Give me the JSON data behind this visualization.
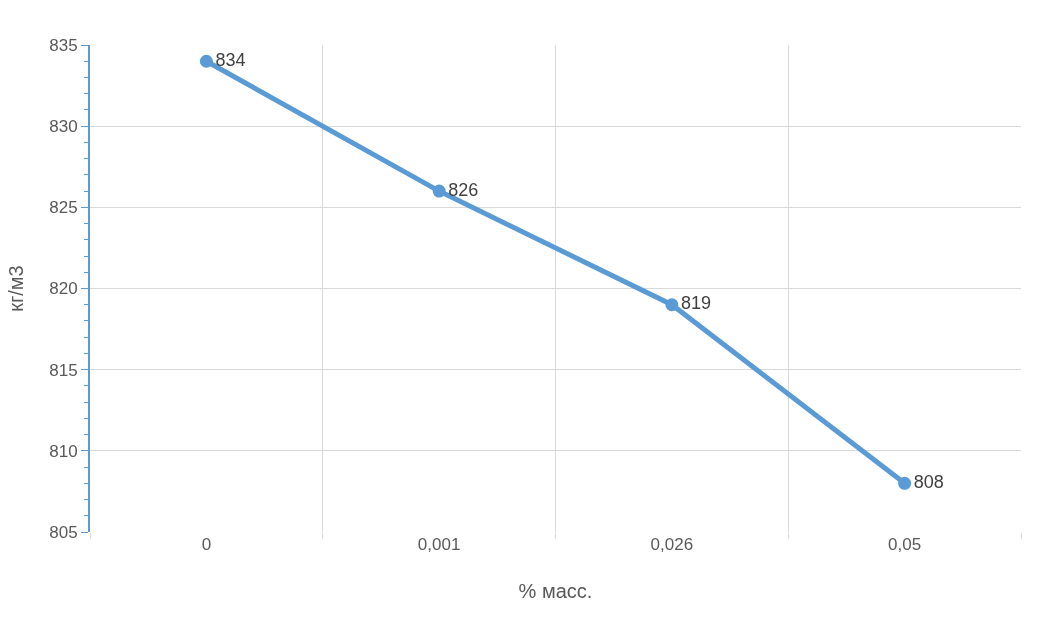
{
  "chart_data": {
    "type": "line",
    "xlabel": "% масс.",
    "ylabel": "кг/м3",
    "categories": [
      "0",
      "0,001",
      "0,026",
      "0,05"
    ],
    "series": [
      {
        "color": "#5b9bd5",
        "values": [
          834,
          826,
          819,
          808
        ]
      }
    ],
    "ylim": [
      805,
      835
    ],
    "yticks": [
      805,
      {
        "value": 806,
        "label": null
      },
      {
        "value": 807,
        "label": null
      },
      {
        "value": 808,
        "label": null
      },
      {
        "value": 809,
        "label": null
      },
      810,
      {
        "value": 811,
        "label": null
      },
      {
        "value": 812,
        "label": null
      },
      {
        "value": 813,
        "label": null
      },
      {
        "value": 814,
        "label": null
      },
      815,
      {
        "value": 816,
        "label": null
      },
      {
        "value": 817,
        "label": null
      },
      {
        "value": 818,
        "label": null
      },
      {
        "value": 819,
        "label": null
      },
      820,
      {
        "value": 821,
        "label": null
      },
      {
        "value": 822,
        "label": null
      },
      {
        "value": 823,
        "label": null
      },
      {
        "value": 824,
        "label": null
      },
      825,
      {
        "value": 826,
        "label": null
      },
      {
        "value": 827,
        "label": null
      },
      {
        "value": 828,
        "label": null
      },
      {
        "value": 829,
        "label": null
      },
      830,
      {
        "value": 831,
        "label": null
      },
      {
        "value": 832,
        "label": null
      },
      {
        "value": 833,
        "label": null
      },
      {
        "value": 834,
        "label": null
      },
      835
    ],
    "grid": true,
    "marker": "circle",
    "line_style": "solid",
    "data_labels": true,
    "legend": false
  }
}
